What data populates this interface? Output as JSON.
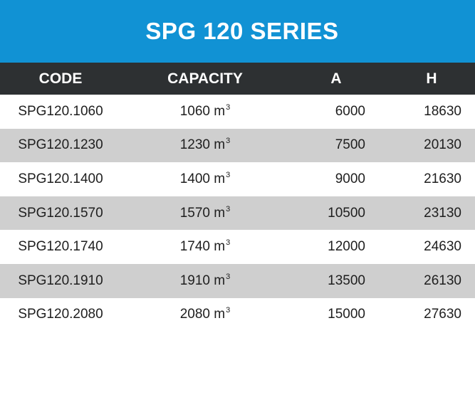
{
  "title": "SPG 120 SERIES",
  "columns": {
    "code": "CODE",
    "capacity": "CAPACITY",
    "a": "A",
    "h": "H"
  },
  "capacity_unit": "m",
  "capacity_unit_exponent": "3",
  "colors": {
    "banner": "#1192d4",
    "header": "#2d3032",
    "shaded_row": "#cfcfcf"
  },
  "rows": [
    {
      "code": "SPG120.1060",
      "capacity": "1060",
      "a": "6000",
      "h": "18630"
    },
    {
      "code": "SPG120.1230",
      "capacity": "1230",
      "a": "7500",
      "h": "20130"
    },
    {
      "code": "SPG120.1400",
      "capacity": "1400",
      "a": "9000",
      "h": "21630"
    },
    {
      "code": "SPG120.1570",
      "capacity": "1570",
      "a": "10500",
      "h": "23130"
    },
    {
      "code": "SPG120.1740",
      "capacity": "1740",
      "a": "12000",
      "h": "24630"
    },
    {
      "code": "SPG120.1910",
      "capacity": "1910",
      "a": "13500",
      "h": "26130"
    },
    {
      "code": "SPG120.2080",
      "capacity": "2080",
      "a": "15000",
      "h": "27630"
    }
  ]
}
